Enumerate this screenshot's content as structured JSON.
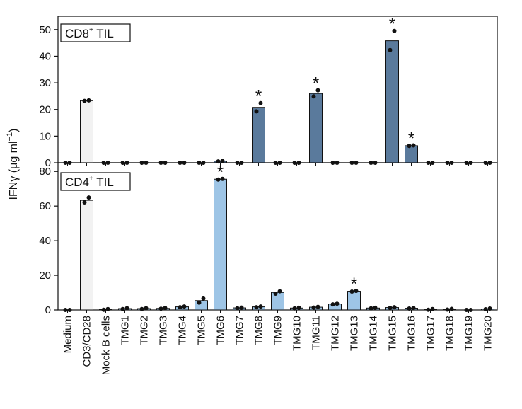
{
  "chart_data": [
    {
      "type": "bar",
      "panel": "top",
      "label_main": "CD8",
      "label_sup": "+",
      "label_rest": " TIL",
      "ylim": [
        0,
        55
      ],
      "yticks": [
        0,
        10,
        20,
        30,
        40,
        50
      ],
      "bar_color": "#5a7a9c",
      "control_color": "#f2f2f2",
      "categories": [
        "Medium",
        "CD3/CD28",
        "Mock B cells",
        "TMG1",
        "TMG2",
        "TMG3",
        "TMG4",
        "TMG5",
        "TMG6",
        "TMG7",
        "TMG8",
        "TMG9",
        "TMG10",
        "TMG11",
        "TMG12",
        "TMG13",
        "TMG14",
        "TMG15",
        "TMG16",
        "TMG17",
        "TMG18",
        "TMG19",
        "TMG20"
      ],
      "values": [
        0,
        23.3,
        0,
        0,
        0,
        0,
        0,
        0,
        0.6,
        0,
        20.8,
        0,
        0,
        26,
        0,
        0,
        0,
        45.8,
        6.4,
        0,
        0,
        0,
        0
      ],
      "points": [
        [
          0,
          0
        ],
        [
          23.2,
          23.4
        ],
        [
          0,
          0
        ],
        [
          0,
          0
        ],
        [
          0,
          0
        ],
        [
          0,
          0
        ],
        [
          0,
          0
        ],
        [
          0,
          0
        ],
        [
          0.5,
          0.7
        ],
        [
          0,
          0
        ],
        [
          19.3,
          22.4
        ],
        [
          0,
          0
        ],
        [
          0,
          0
        ],
        [
          24.9,
          27.2
        ],
        [
          0,
          0
        ],
        [
          0,
          0
        ],
        [
          0,
          0
        ],
        [
          42.3,
          49.5
        ],
        [
          6.3,
          6.5
        ],
        [
          0,
          0
        ],
        [
          0,
          0
        ],
        [
          0,
          0
        ],
        [
          0,
          0
        ]
      ],
      "significant": [
        false,
        false,
        false,
        false,
        false,
        false,
        false,
        false,
        false,
        false,
        true,
        false,
        false,
        true,
        false,
        false,
        false,
        true,
        true,
        false,
        false,
        false,
        false
      ]
    },
    {
      "type": "bar",
      "panel": "bottom",
      "label_main": "CD4",
      "label_sup": "+",
      "label_rest": " TIL",
      "ylim": [
        0,
        85
      ],
      "yticks": [
        0,
        20,
        40,
        60,
        80
      ],
      "bar_color": "#9ec5e6",
      "control_color": "#f2f2f2",
      "categories": [
        "Medium",
        "CD3/CD28",
        "Mock B cells",
        "TMG1",
        "TMG2",
        "TMG3",
        "TMG4",
        "TMG5",
        "TMG6",
        "TMG7",
        "TMG8",
        "TMG9",
        "TMG10",
        "TMG11",
        "TMG12",
        "TMG13",
        "TMG14",
        "TMG15",
        "TMG16",
        "TMG17",
        "TMG18",
        "TMG19",
        "TMG20"
      ],
      "values": [
        0,
        63.3,
        0.3,
        0.8,
        0.8,
        0.9,
        1.8,
        5.4,
        75.5,
        1.2,
        1.8,
        10.1,
        1.1,
        1.6,
        3.4,
        10.8,
        1.1,
        1.4,
        1,
        0.3,
        0.4,
        0,
        0.6
      ],
      "points": [
        [
          0,
          0
        ],
        [
          62.1,
          64.9
        ],
        [
          0.1,
          0.5
        ],
        [
          0.5,
          1.0
        ],
        [
          0.5,
          1.0
        ],
        [
          0.7,
          1.1
        ],
        [
          1.6,
          2.0
        ],
        [
          4.2,
          6.6
        ],
        [
          75.3,
          75.7
        ],
        [
          1.0,
          1.4
        ],
        [
          1.6,
          2.0
        ],
        [
          9.4,
          10.8
        ],
        [
          0.9,
          1.3
        ],
        [
          1.4,
          1.8
        ],
        [
          3.2,
          3.6
        ],
        [
          10.6,
          11.0
        ],
        [
          0.9,
          1.3
        ],
        [
          1.2,
          1.6
        ],
        [
          0.8,
          1.2
        ],
        [
          0.1,
          0.5
        ],
        [
          0.2,
          0.6
        ],
        [
          0,
          0
        ],
        [
          0.4,
          0.8
        ]
      ],
      "significant": [
        false,
        false,
        false,
        false,
        false,
        false,
        false,
        false,
        true,
        false,
        false,
        false,
        false,
        false,
        false,
        true,
        false,
        false,
        false,
        false,
        false,
        false,
        false
      ]
    }
  ],
  "ylabel_main": "IFNγ (μg ml",
  "ylabel_sup": "−1",
  "ylabel_close": ")",
  "star_symbol": "*"
}
